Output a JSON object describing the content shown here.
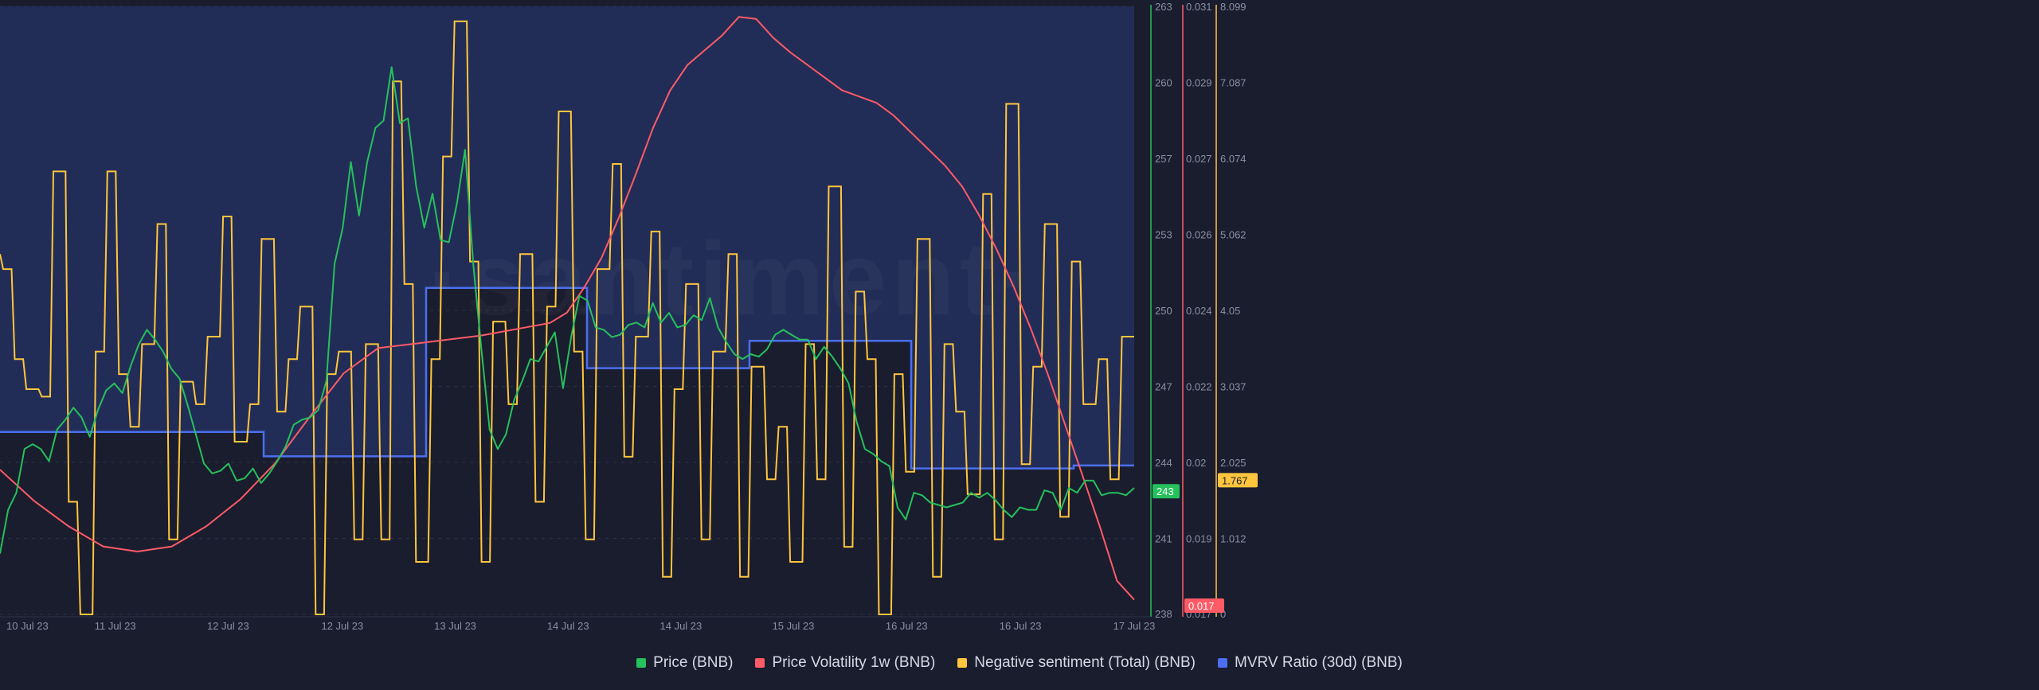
{
  "watermark": "·santiment·",
  "legend": [
    {
      "label": "Price (BNB)",
      "color": "#26c05c"
    },
    {
      "label": "Price Volatility 1w (BNB)",
      "color": "#ff5b66"
    },
    {
      "label": "Negative sentiment (Total) (BNB)",
      "color": "#ffc53d"
    },
    {
      "label": "MVRV Ratio (30d) (BNB)",
      "color": "#4b6ff0"
    }
  ],
  "chart_data": {
    "type": "line",
    "x_ticks": [
      "10 Jul 23",
      "11 Jul 23",
      "12 Jul 23",
      "12 Jul 23",
      "13 Jul 23",
      "14 Jul 23",
      "14 Jul 23",
      "15 Jul 23",
      "16 Jul 23",
      "16 Jul 23",
      "17 Jul 23"
    ],
    "axes": {
      "price": {
        "ticks": [
          "263",
          "260",
          "257",
          "253",
          "250",
          "247",
          "244",
          "241",
          "238"
        ],
        "range": [
          238,
          263
        ],
        "color": "#26c05c"
      },
      "volatility": {
        "ticks": [
          "0.031",
          "0.029",
          "0.027",
          "0.026",
          "0.024",
          "0.022",
          "0.02",
          "0.019",
          "0.017"
        ],
        "range": [
          0.0165,
          0.031
        ],
        "color": "#ff5b66"
      },
      "sentiment": {
        "ticks": [
          "8.099",
          "7.087",
          "6.074",
          "5.062",
          "4.05",
          "3.037",
          "2.025",
          "1.012",
          "0"
        ],
        "range": [
          0,
          8.099
        ],
        "color": "#ffc53d"
      }
    },
    "badges": {
      "price": "243",
      "volatility": "0.017",
      "sentiment": "1.767"
    },
    "series": [
      {
        "name": "Price (BNB)",
        "axis": "price",
        "points": [
          [
            0,
            240.5
          ],
          [
            1,
            242.3
          ],
          [
            2,
            243.0
          ],
          [
            3,
            244.8
          ],
          [
            4,
            245.0
          ],
          [
            5,
            244.8
          ],
          [
            6,
            244.3
          ],
          [
            7,
            245.6
          ],
          [
            8,
            246.0
          ],
          [
            9,
            246.5
          ],
          [
            10,
            246.1
          ],
          [
            11,
            245.3
          ],
          [
            12,
            246.4
          ],
          [
            13,
            247.2
          ],
          [
            14,
            247.5
          ],
          [
            15,
            247.1
          ],
          [
            16,
            248.2
          ],
          [
            17,
            249.1
          ],
          [
            18,
            249.7
          ],
          [
            19,
            249.3
          ],
          [
            20,
            248.8
          ],
          [
            21,
            248.1
          ],
          [
            22,
            247.7
          ],
          [
            23,
            246.6
          ],
          [
            24,
            245.4
          ],
          [
            25,
            244.2
          ],
          [
            26,
            243.8
          ],
          [
            27,
            243.9
          ],
          [
            28,
            244.2
          ],
          [
            29,
            243.5
          ],
          [
            30,
            243.6
          ],
          [
            31,
            244.0
          ],
          [
            32,
            243.4
          ],
          [
            33,
            243.8
          ],
          [
            34,
            244.3
          ],
          [
            35,
            244.9
          ],
          [
            36,
            245.8
          ],
          [
            37,
            246.0
          ],
          [
            38,
            246.1
          ],
          [
            39,
            246.4
          ],
          [
            40,
            247.6
          ],
          [
            41,
            252.4
          ],
          [
            42,
            253.9
          ],
          [
            43,
            256.6
          ],
          [
            44,
            254.4
          ],
          [
            45,
            256.6
          ],
          [
            46,
            258.0
          ],
          [
            47,
            258.3
          ],
          [
            48,
            260.5
          ],
          [
            49,
            258.2
          ],
          [
            50,
            258.4
          ],
          [
            51,
            255.6
          ],
          [
            52,
            253.9
          ],
          [
            53,
            255.3
          ],
          [
            54,
            253.4
          ],
          [
            55,
            253.3
          ],
          [
            56,
            254.9
          ],
          [
            57,
            257.1
          ],
          [
            58,
            252.4
          ],
          [
            59,
            248.9
          ],
          [
            60,
            245.6
          ],
          [
            61,
            244.8
          ],
          [
            62,
            245.4
          ],
          [
            63,
            246.8
          ],
          [
            64,
            247.6
          ],
          [
            65,
            248.5
          ],
          [
            66,
            248.4
          ],
          [
            67,
            249.0
          ],
          [
            68,
            249.6
          ],
          [
            69,
            247.3
          ],
          [
            70,
            249.4
          ],
          [
            71,
            251.1
          ],
          [
            72,
            250.9
          ],
          [
            73,
            249.8
          ],
          [
            74,
            249.7
          ],
          [
            75,
            249.4
          ],
          [
            76,
            249.5
          ],
          [
            77,
            249.9
          ],
          [
            78,
            250.0
          ],
          [
            79,
            249.8
          ],
          [
            80,
            250.8
          ],
          [
            81,
            250.0
          ],
          [
            82,
            250.4
          ],
          [
            83,
            249.8
          ],
          [
            84,
            249.9
          ],
          [
            85,
            250.3
          ],
          [
            86,
            250.1
          ],
          [
            87,
            251.0
          ],
          [
            88,
            249.8
          ],
          [
            89,
            249.2
          ],
          [
            90,
            248.7
          ],
          [
            91,
            248.5
          ],
          [
            92,
            248.7
          ],
          [
            93,
            248.6
          ],
          [
            94,
            248.9
          ],
          [
            95,
            249.5
          ],
          [
            96,
            249.7
          ],
          [
            97,
            249.5
          ],
          [
            98,
            249.3
          ],
          [
            99,
            249.3
          ],
          [
            100,
            248.5
          ],
          [
            101,
            249.0
          ],
          [
            102,
            248.6
          ],
          [
            103,
            248.1
          ],
          [
            104,
            247.5
          ],
          [
            105,
            245.9
          ],
          [
            106,
            244.8
          ],
          [
            107,
            244.6
          ],
          [
            108,
            244.3
          ],
          [
            109,
            244.1
          ],
          [
            110,
            242.4
          ],
          [
            111,
            241.9
          ],
          [
            112,
            243.0
          ],
          [
            113,
            242.9
          ],
          [
            114,
            242.6
          ],
          [
            115,
            242.5
          ],
          [
            116,
            242.4
          ],
          [
            117,
            242.5
          ],
          [
            118,
            242.6
          ],
          [
            119,
            243.0
          ],
          [
            120,
            242.8
          ],
          [
            121,
            243.0
          ],
          [
            122,
            242.7
          ],
          [
            123,
            242.3
          ],
          [
            124,
            242.0
          ],
          [
            125,
            242.4
          ],
          [
            126,
            242.3
          ],
          [
            127,
            242.3
          ],
          [
            128,
            243.1
          ],
          [
            129,
            243.0
          ],
          [
            130,
            242.3
          ],
          [
            131,
            243.2
          ],
          [
            132,
            243.0
          ],
          [
            133,
            243.5
          ],
          [
            134,
            243.5
          ],
          [
            135,
            242.9
          ],
          [
            136,
            243.0
          ],
          [
            137,
            243.0
          ],
          [
            138,
            242.9
          ],
          [
            139,
            243.2
          ]
        ]
      },
      {
        "name": "Price Volatility 1w (BNB)",
        "axis": "volatility",
        "points": [
          [
            0,
            0.01995
          ],
          [
            4,
            0.0192
          ],
          [
            8,
            0.0186
          ],
          [
            12,
            0.01812
          ],
          [
            16,
            0.018
          ],
          [
            20,
            0.01812
          ],
          [
            24,
            0.0186
          ],
          [
            28,
            0.01925
          ],
          [
            32,
            0.0201
          ],
          [
            36,
            0.0212
          ],
          [
            40,
            0.02225
          ],
          [
            44,
            0.02285
          ],
          [
            48,
            0.02295
          ],
          [
            52,
            0.02305
          ],
          [
            56,
            0.02315
          ],
          [
            60,
            0.0233
          ],
          [
            64,
            0.02345
          ],
          [
            66,
            0.0237
          ],
          [
            68,
            0.0243
          ],
          [
            70,
            0.025
          ],
          [
            72,
            0.02595
          ],
          [
            74,
            0.027
          ],
          [
            76,
            0.0281
          ],
          [
            78,
            0.029
          ],
          [
            80,
            0.0296
          ],
          [
            82,
            0.02995
          ],
          [
            84,
            0.0303
          ],
          [
            86,
            0.03075
          ],
          [
            88,
            0.0307
          ],
          [
            90,
            0.03025
          ],
          [
            92,
            0.0299
          ],
          [
            94,
            0.0296
          ],
          [
            96,
            0.0293
          ],
          [
            98,
            0.029
          ],
          [
            100,
            0.02885
          ],
          [
            102,
            0.0287
          ],
          [
            104,
            0.0284
          ],
          [
            106,
            0.028
          ],
          [
            108,
            0.0276
          ],
          [
            110,
            0.0272
          ],
          [
            112,
            0.0267
          ],
          [
            114,
            0.026
          ],
          [
            116,
            0.0252
          ],
          [
            118,
            0.0243
          ],
          [
            120,
            0.0233
          ],
          [
            122,
            0.0222
          ],
          [
            124,
            0.021
          ],
          [
            126,
            0.0198
          ],
          [
            128,
            0.0186
          ],
          [
            130,
            0.0173
          ],
          [
            132,
            0.01685
          ]
        ]
      },
      {
        "name": "Negative sentiment (Total) (BNB)",
        "axis": "sentiment",
        "points": [
          [
            0,
            4.8
          ],
          [
            3,
            4.6
          ],
          [
            6,
            3.4
          ],
          [
            10,
            3.0
          ],
          [
            13,
            2.9
          ],
          [
            17,
            5.9
          ],
          [
            20,
            1.5
          ],
          [
            24,
            0.0
          ],
          [
            27,
            3.5
          ],
          [
            30,
            5.9
          ],
          [
            33,
            3.2
          ],
          [
            36,
            2.5
          ],
          [
            40,
            3.6
          ],
          [
            43,
            5.2
          ],
          [
            46,
            1.0
          ],
          [
            50,
            3.1
          ],
          [
            53,
            2.8
          ],
          [
            57,
            3.7
          ],
          [
            60,
            5.3
          ],
          [
            64,
            2.3
          ],
          [
            67,
            2.8
          ],
          [
            71,
            5.0
          ],
          [
            74,
            2.7
          ],
          [
            77,
            3.4
          ],
          [
            81,
            4.1
          ],
          [
            84,
            0.0
          ],
          [
            87,
            3.2
          ],
          [
            91,
            3.5
          ],
          [
            94,
            1.0
          ],
          [
            98,
            3.6
          ],
          [
            101,
            1.0
          ],
          [
            104,
            7.1
          ],
          [
            107,
            4.4
          ],
          [
            111,
            0.7
          ],
          [
            114,
            3.4
          ],
          [
            117,
            6.1
          ],
          [
            121,
            7.9
          ],
          [
            124,
            4.7
          ],
          [
            127,
            0.7
          ],
          [
            131,
            3.9
          ],
          [
            134,
            2.8
          ],
          [
            138,
            4.8
          ],
          [
            141,
            1.5
          ],
          [
            144,
            4.1
          ],
          [
            148,
            6.7
          ],
          [
            151,
            3.5
          ],
          [
            154,
            1.0
          ],
          [
            158,
            4.6
          ],
          [
            161,
            6.0
          ],
          [
            164,
            2.1
          ],
          [
            168,
            3.7
          ],
          [
            171,
            5.1
          ],
          [
            174,
            0.5
          ],
          [
            177,
            3.0
          ],
          [
            181,
            4.4
          ],
          [
            184,
            1.0
          ],
          [
            188,
            3.5
          ],
          [
            191,
            4.8
          ],
          [
            194,
            0.5
          ],
          [
            198,
            3.3
          ],
          [
            201,
            1.8
          ],
          [
            204,
            2.5
          ],
          [
            208,
            0.7
          ],
          [
            211,
            3.6
          ],
          [
            214,
            1.8
          ],
          [
            218,
            5.7
          ],
          [
            221,
            0.9
          ],
          [
            224,
            4.3
          ],
          [
            227,
            3.4
          ],
          [
            231,
            0.0
          ],
          [
            234,
            3.2
          ],
          [
            237,
            1.9
          ],
          [
            241,
            5.0
          ],
          [
            244,
            0.5
          ],
          [
            247,
            3.6
          ],
          [
            250,
            2.7
          ],
          [
            254,
            1.6
          ],
          [
            257,
            5.6
          ],
          [
            260,
            1.0
          ],
          [
            264,
            6.8
          ],
          [
            267,
            2.0
          ],
          [
            270,
            3.3
          ],
          [
            274,
            5.2
          ],
          [
            277,
            1.3
          ],
          [
            280,
            4.7
          ],
          [
            284,
            2.8
          ],
          [
            287,
            3.4
          ],
          [
            290,
            1.8
          ],
          [
            294,
            3.7
          ]
        ]
      },
      {
        "name": "MVRV Ratio (30d) (BNB)",
        "axis": "mvrv_hidden",
        "steps": [
          [
            0,
            0.7
          ],
          [
            331,
            0.7
          ],
          [
            331,
            0.74
          ],
          [
            535,
            0.74
          ],
          [
            535,
            0.463
          ],
          [
            737,
            0.463
          ],
          [
            737,
            0.595
          ],
          [
            941,
            0.595
          ],
          [
            941,
            0.55
          ],
          [
            1144,
            0.55
          ],
          [
            1144,
            0.76
          ],
          [
            1348,
            0.76
          ],
          [
            1348,
            0.755
          ],
          [
            1424,
            0.755
          ]
        ]
      }
    ]
  }
}
